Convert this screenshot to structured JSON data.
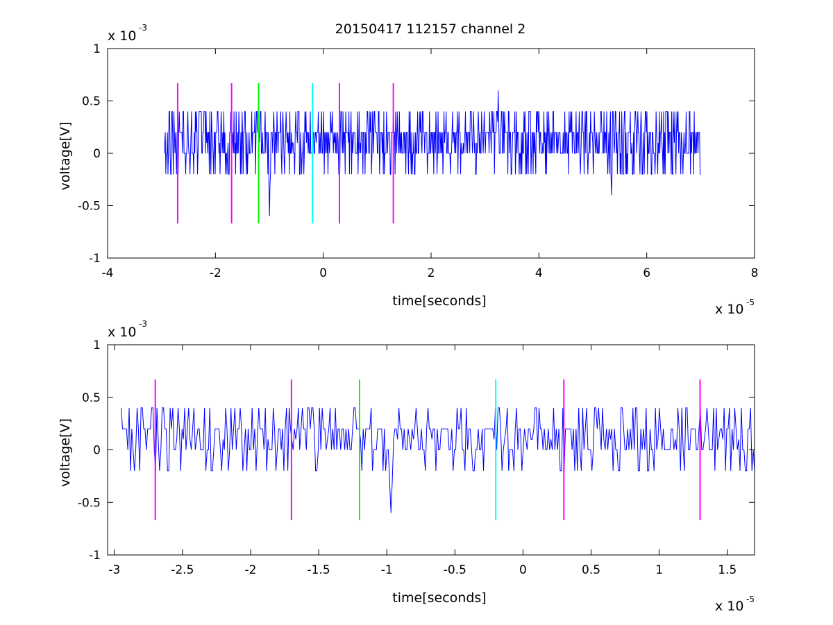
{
  "figure": {
    "title": "20150417 112157 channel 2"
  },
  "chart_data": [
    {
      "type": "line",
      "title": "20150417 112157 channel 2",
      "xlabel": "time[seconds]",
      "ylabel": "voltage[V]",
      "x_multiplier": "x 10",
      "x_multiplier_exp": "-5",
      "y_multiplier": "x 10",
      "y_multiplier_exp": "-3",
      "xlim": [
        -4e-05,
        8e-05
      ],
      "ylim": [
        -0.001,
        0.001
      ],
      "xticks": [
        -4e-05,
        -2e-05,
        0,
        2e-05,
        4e-05,
        6e-05,
        8e-05
      ],
      "xtick_labels": [
        "-4",
        "-2",
        "0",
        "2",
        "4",
        "6",
        "8"
      ],
      "yticks": [
        -0.001,
        -0.0005,
        0,
        0.0005,
        0.001
      ],
      "ytick_labels": [
        "-1",
        "-0.5",
        "0",
        "0.5",
        "1"
      ],
      "grid": false,
      "series": [
        {
          "color": "#0000ff",
          "x_start": -2.95e-05,
          "x_end": 7e-05,
          "n_points": 1000,
          "notable_points": [
            {
              "x": -1e-05,
              "y": -0.0006
            },
            {
              "x": 3.25e-05,
              "y": 0.0006
            },
            {
              "x": 5.35e-05,
              "y": -0.0004
            }
          ]
        }
      ],
      "markers": [
        {
          "x": -2.7e-05,
          "y_from": -0.00067,
          "y_to": 0.00067,
          "color": "#ff00ff"
        },
        {
          "x": -1.7e-05,
          "y_from": -0.00067,
          "y_to": 0.00067,
          "color": "#ff00ff"
        },
        {
          "x": -1.2e-05,
          "y_from": -0.00067,
          "y_to": 0.00067,
          "color": "#00ff00"
        },
        {
          "x": -2e-06,
          "y_from": -0.00067,
          "y_to": 0.00067,
          "color": "#00ffff"
        },
        {
          "x": 3e-06,
          "y_from": -0.00067,
          "y_to": 0.00067,
          "color": "#ff00ff"
        },
        {
          "x": 1.3e-05,
          "y_from": -0.00067,
          "y_to": 0.00067,
          "color": "#ff00ff"
        }
      ]
    },
    {
      "type": "line",
      "title": "",
      "xlabel": "time[seconds]",
      "ylabel": "voltage[V]",
      "x_multiplier": "x 10",
      "x_multiplier_exp": "-5",
      "y_multiplier": "x 10",
      "y_multiplier_exp": "-3",
      "xlim": [
        -3.05e-05,
        1.7e-05
      ],
      "ylim": [
        -0.001,
        0.001
      ],
      "xticks": [
        -3e-05,
        -2.5e-05,
        -2e-05,
        -1.5e-05,
        -1e-05,
        -5e-06,
        0,
        5e-06,
        1e-05,
        1.5e-05
      ],
      "xtick_labels": [
        "-3",
        "-2.5",
        "-2",
        "-1.5",
        "-1",
        "-0.5",
        "0",
        "0.5",
        "1",
        "1.5"
      ],
      "yticks": [
        -0.001,
        -0.0005,
        0,
        0.0005,
        0.001
      ],
      "ytick_labels": [
        "-1",
        "-0.5",
        "0",
        "0.5",
        "1"
      ],
      "grid": false,
      "series": [
        {
          "color": "#0000ff",
          "x_start": -2.95e-05,
          "x_end": 1.7e-05,
          "n_points": 480,
          "notable_points": [
            {
              "x": -9.7e-06,
              "y": -0.0006
            }
          ]
        }
      ],
      "markers": [
        {
          "x": -2.7e-05,
          "y_from": -0.00067,
          "y_to": 0.00067,
          "color": "#ff00ff"
        },
        {
          "x": -1.7e-05,
          "y_from": -0.00067,
          "y_to": 0.00067,
          "color": "#ff00ff"
        },
        {
          "x": -1.2e-05,
          "y_from": -0.00067,
          "y_to": 0.00067,
          "color": "#00ff00"
        },
        {
          "x": -2e-06,
          "y_from": -0.00067,
          "y_to": 0.00067,
          "color": "#00ffff"
        },
        {
          "x": 3e-06,
          "y_from": -0.00067,
          "y_to": 0.00067,
          "color": "#ff00ff"
        },
        {
          "x": 1.3e-05,
          "y_from": -0.00067,
          "y_to": 0.00067,
          "color": "#ff00ff"
        }
      ]
    }
  ]
}
